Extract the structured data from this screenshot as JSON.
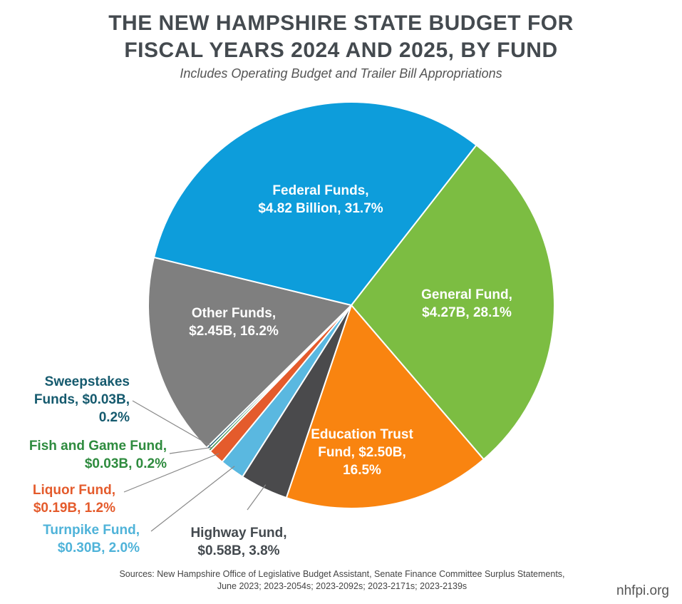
{
  "colors": {
    "federal": "#0d9ddb",
    "general": "#7cbd42",
    "education": "#f98410",
    "highway": "#4a4a4c",
    "turnpike": "#5ab8e0",
    "liquor": "#e45b2c",
    "fishgame": "#2e8b3e",
    "sweepstakes": "#155a6e",
    "other": "#7f7f7f",
    "leader": "#888888"
  },
  "chart_data": {
    "type": "pie",
    "title": "THE NEW HAMPSHIRE STATE BUDGET FOR FISCAL YEARS 2024 AND 2025, BY FUND",
    "subtitle": "Includes Operating Budget and Trailer Bill Appropriations",
    "unit": "Billion $",
    "slices": [
      {
        "key": "general",
        "name": "General Fund",
        "value": 4.27,
        "percent": 28.1,
        "label": [
          "General Fund,",
          "$4.27B, 28.1%"
        ]
      },
      {
        "key": "education",
        "name": "Education Trust Fund",
        "value": 2.5,
        "percent": 16.5,
        "label": [
          "Education Trust",
          "Fund, $2.50B,",
          "16.5%"
        ]
      },
      {
        "key": "highway",
        "name": "Highway Fund",
        "value": 0.58,
        "percent": 3.8,
        "label": [
          "Highway Fund,",
          "$0.58B, 3.8%"
        ]
      },
      {
        "key": "turnpike",
        "name": "Turnpike Fund",
        "value": 0.3,
        "percent": 2.0,
        "label": [
          "Turnpike Fund,",
          "$0.30B, 2.0%"
        ]
      },
      {
        "key": "liquor",
        "name": "Liquor Fund",
        "value": 0.19,
        "percent": 1.2,
        "label": [
          "Liquor Fund,",
          "$0.19B, 1.2%"
        ]
      },
      {
        "key": "fishgame",
        "name": "Fish and Game Fund",
        "value": 0.03,
        "percent": 0.2,
        "label": [
          "Fish and Game Fund,",
          "$0.03B, 0.2%"
        ]
      },
      {
        "key": "sweepstakes",
        "name": "Sweepstakes Funds",
        "value": 0.03,
        "percent": 0.2,
        "label": [
          "Sweepstakes",
          "Funds, $0.03B,",
          "0.2%"
        ]
      },
      {
        "key": "other",
        "name": "Other Funds",
        "value": 2.45,
        "percent": 16.2,
        "label": [
          "Other Funds,",
          "$2.45B, 16.2%"
        ]
      },
      {
        "key": "federal",
        "name": "Federal Funds",
        "value": 4.82,
        "percent": 31.7,
        "label": [
          "Federal Funds,",
          "$4.82 Billion, 31.7%"
        ]
      }
    ]
  },
  "header": {
    "title_line1": "THE NEW HAMPSHIRE STATE BUDGET FOR",
    "title_line2": "FISCAL YEARS 2024 AND 2025, BY FUND",
    "subtitle": "Includes Operating Budget and Trailer Bill Appropriations"
  },
  "footer": {
    "sources_line1": "Sources: New Hampshire Office of Legislative Budget Assistant, Senate Finance Committee Surplus Statements,",
    "sources_line2": "June 2023; 2023-2054s; 2023-2092s; 2023-2171s; 2023-2139s",
    "brand": "nhfpi.org"
  }
}
